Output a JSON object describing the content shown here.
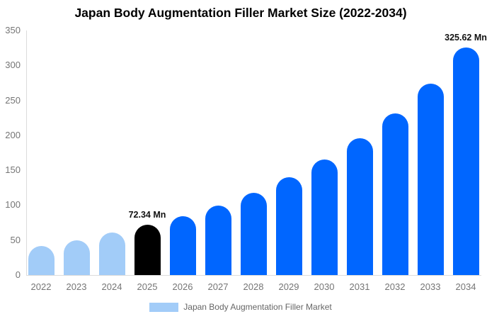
{
  "colors": {
    "past": "#A2CCF8",
    "current": "#000000",
    "forecast": "#0066FF",
    "axis_line": "#DCDCDC",
    "tick_text": "#757575",
    "annotation_text": "#111111",
    "legend_text": "#666666",
    "title_text": "#000000",
    "background": "#FFFFFF"
  },
  "chart_data": {
    "type": "bar",
    "title": "Japan Body Augmentation Filler Market Size (2022-2034)",
    "unit": "Mn",
    "categories": [
      "2022",
      "2023",
      "2024",
      "2025",
      "2026",
      "2027",
      "2028",
      "2029",
      "2030",
      "2031",
      "2032",
      "2033",
      "2034"
    ],
    "values": [
      42,
      50,
      61,
      72.34,
      84,
      99,
      118,
      140,
      165,
      196,
      231,
      274,
      325.62
    ],
    "bar_roles": [
      "past",
      "past",
      "past",
      "current",
      "forecast",
      "forecast",
      "forecast",
      "forecast",
      "forecast",
      "forecast",
      "forecast",
      "forecast",
      "forecast"
    ],
    "ylim": [
      0,
      350
    ],
    "yticks": [
      0,
      50,
      100,
      150,
      200,
      250,
      300,
      350
    ],
    "grid": false,
    "annotations": [
      {
        "category": "2025",
        "text": "72.34 Mn"
      },
      {
        "category": "2034",
        "text": "325.62 Mn"
      }
    ],
    "legend": {
      "position": "bottom",
      "label": "Japan Body Augmentation Filler Market"
    }
  }
}
